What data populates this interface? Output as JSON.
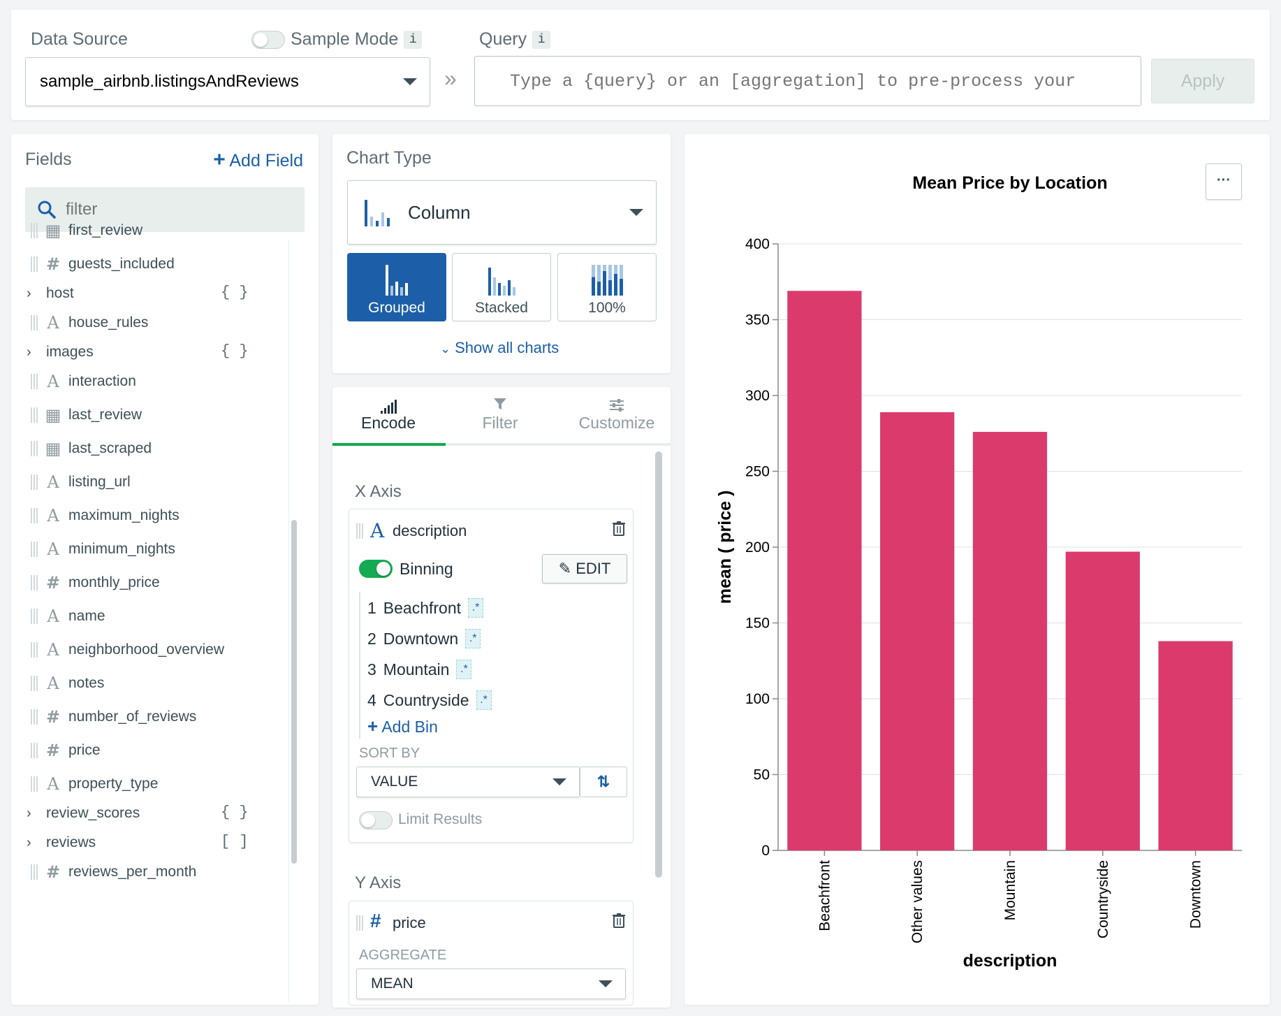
{
  "top": {
    "data_source_label": "Data Source",
    "sample_mode_label": "Sample Mode",
    "info": "i",
    "data_source_value": "sample_airbnb.listingsAndReviews",
    "arrow": "»",
    "query_label": "Query",
    "query_placeholder": "Type a {query} or an [aggregation] to pre-process your",
    "apply_label": "Apply"
  },
  "fields": {
    "title": "Fields",
    "add_field": "Add Field",
    "filter_placeholder": "filter",
    "items": [
      {
        "name": "first_review",
        "type": "date"
      },
      {
        "name": "guests_included",
        "type": "number"
      },
      {
        "name": "host",
        "type": "object",
        "badge": "{ }"
      },
      {
        "name": "house_rules",
        "type": "string"
      },
      {
        "name": "images",
        "type": "object",
        "badge": "{ }"
      },
      {
        "name": "interaction",
        "type": "string"
      },
      {
        "name": "last_review",
        "type": "date"
      },
      {
        "name": "last_scraped",
        "type": "date"
      },
      {
        "name": "listing_url",
        "type": "string"
      },
      {
        "name": "maximum_nights",
        "type": "string"
      },
      {
        "name": "minimum_nights",
        "type": "string"
      },
      {
        "name": "monthly_price",
        "type": "number"
      },
      {
        "name": "name",
        "type": "string"
      },
      {
        "name": "neighborhood_overview",
        "type": "string"
      },
      {
        "name": "notes",
        "type": "string"
      },
      {
        "name": "number_of_reviews",
        "type": "number"
      },
      {
        "name": "price",
        "type": "number"
      },
      {
        "name": "property_type",
        "type": "string"
      },
      {
        "name": "review_scores",
        "type": "object",
        "badge": "{ }"
      },
      {
        "name": "reviews",
        "type": "array",
        "badge": "[ ]"
      },
      {
        "name": "reviews_per_month",
        "type": "number"
      }
    ]
  },
  "chart_type": {
    "title": "Chart Type",
    "selected": "Column",
    "variants": [
      "Grouped",
      "Stacked",
      "100%"
    ],
    "show_all": "Show all charts"
  },
  "tabs": [
    "Encode",
    "Filter",
    "Customize"
  ],
  "encode": {
    "x_axis_label": "X Axis",
    "x_field": "description",
    "binning_label": "Binning",
    "edit_label": "EDIT",
    "bins": [
      {
        "n": "1",
        "label": "Beachfront"
      },
      {
        "n": "2",
        "label": "Downtown"
      },
      {
        "n": "3",
        "label": "Mountain"
      },
      {
        "n": "4",
        "label": "Countryside"
      }
    ],
    "bin_badge": ".*",
    "add_bin": "Add Bin",
    "sort_by_label": "SORT BY",
    "sort_value": "VALUE",
    "limit_results": "Limit Results",
    "y_axis_label": "Y Axis",
    "y_field": "price",
    "aggregate_label": "AGGREGATE",
    "aggregate_value": "MEAN"
  },
  "chart_menu": "···",
  "chart_data": {
    "type": "bar",
    "title": "Mean Price by Location",
    "xlabel": "description",
    "ylabel": "mean ( price )",
    "categories": [
      "Beachfront",
      "Other values",
      "Mountain",
      "Countryside",
      "Downtown"
    ],
    "values": [
      369,
      289,
      276,
      197,
      138
    ],
    "ylim": [
      0,
      400
    ],
    "yticks": [
      0,
      50,
      100,
      150,
      200,
      250,
      300,
      350,
      400
    ],
    "grid": true,
    "color": "#db3a6d"
  }
}
